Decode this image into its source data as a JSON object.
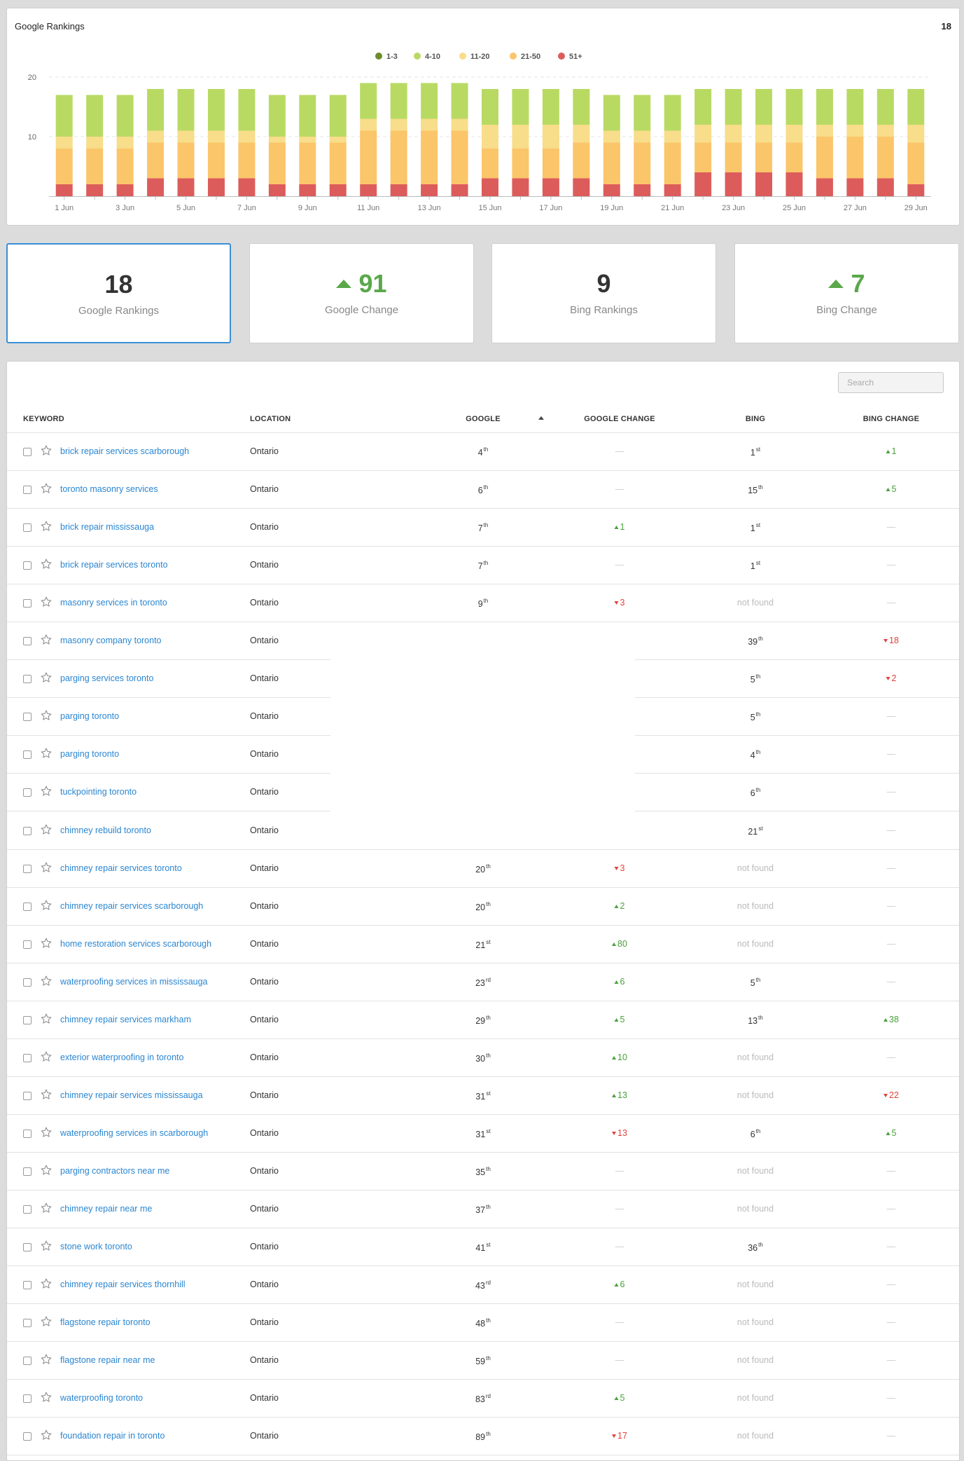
{
  "chart": {
    "title": "Google Rankings",
    "count": "18"
  },
  "chart_data": {
    "type": "bar",
    "stacked": true,
    "categories": [
      "1 Jun",
      "2 Jun",
      "3 Jun",
      "4 Jun",
      "5 Jun",
      "6 Jun",
      "7 Jun",
      "8 Jun",
      "9 Jun",
      "10 Jun",
      "11 Jun",
      "12 Jun",
      "13 Jun",
      "14 Jun",
      "15 Jun",
      "16 Jun",
      "17 Jun",
      "18 Jun",
      "19 Jun",
      "20 Jun",
      "21 Jun",
      "22 Jun",
      "23 Jun",
      "24 Jun",
      "25 Jun",
      "26 Jun",
      "27 Jun",
      "28 Jun",
      "29 Jun"
    ],
    "tick_labels": [
      "1 Jun",
      "3 Jun",
      "5 Jun",
      "7 Jun",
      "9 Jun",
      "11 Jun",
      "13 Jun",
      "15 Jun",
      "17 Jun",
      "19 Jun",
      "21 Jun",
      "23 Jun",
      "25 Jun",
      "27 Jun",
      "29 Jun"
    ],
    "y_ticks": [
      "10",
      "20"
    ],
    "ylim": [
      0,
      20
    ],
    "grid": true,
    "legend_position": "top-center",
    "series": [
      {
        "name": "51+",
        "color": "#dc5c5c",
        "values": [
          2,
          2,
          2,
          3,
          3,
          3,
          3,
          2,
          2,
          2,
          2,
          2,
          2,
          2,
          3,
          3,
          3,
          3,
          2,
          2,
          2,
          4,
          4,
          4,
          4,
          3,
          3,
          3,
          2
        ]
      },
      {
        "name": "21-50",
        "color": "#fbc56a",
        "values": [
          6,
          6,
          6,
          6,
          6,
          6,
          6,
          7,
          7,
          7,
          9,
          9,
          9,
          9,
          5,
          5,
          5,
          6,
          7,
          7,
          7,
          5,
          5,
          5,
          5,
          7,
          7,
          7,
          7
        ]
      },
      {
        "name": "11-20",
        "color": "#f8dd8a",
        "values": [
          2,
          2,
          2,
          2,
          2,
          2,
          2,
          1,
          1,
          1,
          2,
          2,
          2,
          2,
          4,
          4,
          4,
          3,
          2,
          2,
          2,
          3,
          3,
          3,
          3,
          2,
          2,
          2,
          3
        ]
      },
      {
        "name": "4-10",
        "color": "#b8da63",
        "values": [
          7,
          7,
          7,
          7,
          7,
          7,
          7,
          7,
          7,
          7,
          6,
          6,
          6,
          6,
          6,
          6,
          6,
          6,
          6,
          6,
          6,
          6,
          6,
          6,
          6,
          6,
          6,
          6,
          6
        ]
      },
      {
        "name": "1-3",
        "color": "#6b8d2a",
        "values": [
          0,
          0,
          0,
          0,
          0,
          0,
          0,
          0,
          0,
          0,
          0,
          0,
          0,
          0,
          0,
          0,
          0,
          0,
          0,
          0,
          0,
          0,
          0,
          0,
          0,
          0,
          0,
          0,
          0
        ]
      }
    ],
    "legend_order": [
      "1-3",
      "4-10",
      "11-20",
      "21-50",
      "51+"
    ]
  },
  "stats": [
    {
      "value": "18",
      "label": "Google Rankings",
      "trend": "none",
      "active": true
    },
    {
      "value": "91",
      "label": "Google Change",
      "trend": "up",
      "active": false
    },
    {
      "value": "9",
      "label": "Bing Rankings",
      "trend": "none",
      "active": false
    },
    {
      "value": "7",
      "label": "Bing Change",
      "trend": "up",
      "active": false
    }
  ],
  "table": {
    "search_placeholder": "Search",
    "headers": {
      "keyword": "KEYWORD",
      "location": "LOCATION",
      "google": "GOOGLE",
      "google_change": "GOOGLE CHANGE",
      "bing": "BING",
      "bing_change": "BING CHANGE"
    },
    "rows": [
      {
        "keyword": "brick repair services scarborough",
        "location": "Ontario",
        "google": "4",
        "gsuf": "th",
        "gchange": "—",
        "bing": "1",
        "bsuf": "st",
        "bchange": "1",
        "bdir": "up"
      },
      {
        "keyword": "toronto masonry services",
        "location": "Ontario",
        "google": "6",
        "gsuf": "th",
        "gchange": "—",
        "bing": "15",
        "bsuf": "th",
        "bchange": "5",
        "bdir": "up"
      },
      {
        "keyword": "brick repair mississauga",
        "location": "Ontario",
        "google": "7",
        "gsuf": "th",
        "gchange": "1",
        "gdir": "up",
        "bing": "1",
        "bsuf": "st",
        "bchange": "—"
      },
      {
        "keyword": "brick repair services toronto",
        "location": "Ontario",
        "google": "7",
        "gsuf": "th",
        "gchange": "—",
        "bing": "1",
        "bsuf": "st",
        "bchange": "—"
      },
      {
        "keyword": "masonry services in toronto",
        "location": "Ontario",
        "google": "9",
        "gsuf": "th",
        "gchange": "3",
        "gdir": "down",
        "bing": "not found",
        "bchange": "—"
      },
      {
        "keyword": "masonry company toronto",
        "location": "Ontario",
        "google": "",
        "gchange": "",
        "bing": "39",
        "bsuf": "th",
        "bchange": "18",
        "bdir": "down",
        "gap": true
      },
      {
        "keyword": "parging services toronto",
        "location": "Ontario",
        "google": "",
        "gchange": "",
        "bing": "5",
        "bsuf": "th",
        "bchange": "2",
        "bdir": "down",
        "gap": true
      },
      {
        "keyword": "parging toronto",
        "location": "Ontario",
        "google": "",
        "gchange": "",
        "bing": "5",
        "bsuf": "th",
        "bchange": "—",
        "gap": true
      },
      {
        "keyword": "parging toronto",
        "location": "Ontario",
        "google": "",
        "gchange": "",
        "bing": "4",
        "bsuf": "th",
        "bchange": "—",
        "gap": true
      },
      {
        "keyword": "tuckpointing toronto",
        "location": "Ontario",
        "google": "",
        "gchange": "",
        "bing": "6",
        "bsuf": "th",
        "bchange": "—",
        "gap": true
      },
      {
        "keyword": "chimney rebuild toronto",
        "location": "Ontario",
        "google": "",
        "gchange": "",
        "bing": "21",
        "bsuf": "st",
        "bchange": "—",
        "gap": false
      },
      {
        "keyword": "chimney repair services toronto",
        "location": "Ontario",
        "google": "20",
        "gsuf": "th",
        "gchange": "3",
        "gdir": "down",
        "bing": "not found",
        "bchange": "—"
      },
      {
        "keyword": "chimney repair services scarborough",
        "location": "Ontario",
        "google": "20",
        "gsuf": "th",
        "gchange": "2",
        "gdir": "up",
        "bing": "not found",
        "bchange": "—"
      },
      {
        "keyword": "home restoration services scarborough",
        "location": "Ontario",
        "google": "21",
        "gsuf": "st",
        "gchange": "80",
        "gdir": "up",
        "bing": "not found",
        "bchange": "—"
      },
      {
        "keyword": "waterproofing services in mississauga",
        "location": "Ontario",
        "google": "23",
        "gsuf": "rd",
        "gchange": "6",
        "gdir": "up",
        "bing": "5",
        "bsuf": "th",
        "bchange": "—"
      },
      {
        "keyword": "chimney repair services markham",
        "location": "Ontario",
        "google": "29",
        "gsuf": "th",
        "gchange": "5",
        "gdir": "up",
        "bing": "13",
        "bsuf": "th",
        "bchange": "38",
        "bdir": "up"
      },
      {
        "keyword": "exterior waterproofing in toronto",
        "location": "Ontario",
        "google": "30",
        "gsuf": "th",
        "gchange": "10",
        "gdir": "up",
        "bing": "not found",
        "bchange": "—"
      },
      {
        "keyword": "chimney repair services mississauga",
        "location": "Ontario",
        "google": "31",
        "gsuf": "st",
        "gchange": "13",
        "gdir": "up",
        "bing": "not found",
        "bchange": "22",
        "bdir": "down"
      },
      {
        "keyword": "waterproofing services in scarborough",
        "location": "Ontario",
        "google": "31",
        "gsuf": "st",
        "gchange": "13",
        "gdir": "down",
        "bing": "6",
        "bsuf": "th",
        "bchange": "5",
        "bdir": "up"
      },
      {
        "keyword": "parging contractors near me",
        "location": "Ontario",
        "google": "35",
        "gsuf": "th",
        "gchange": "—",
        "bing": "not found",
        "bchange": "—"
      },
      {
        "keyword": "chimney repair near me",
        "location": "Ontario",
        "google": "37",
        "gsuf": "th",
        "gchange": "—",
        "bing": "not found",
        "bchange": "—"
      },
      {
        "keyword": "stone work toronto",
        "location": "Ontario",
        "google": "41",
        "gsuf": "st",
        "gchange": "—",
        "bing": "36",
        "bsuf": "th",
        "bchange": "—"
      },
      {
        "keyword": "chimney repair services thornhill",
        "location": "Ontario",
        "google": "43",
        "gsuf": "rd",
        "gchange": "6",
        "gdir": "up",
        "bing": "not found",
        "bchange": "—"
      },
      {
        "keyword": "flagstone repair toronto",
        "location": "Ontario",
        "google": "48",
        "gsuf": "th",
        "gchange": "—",
        "bing": "not found",
        "bchange": "—"
      },
      {
        "keyword": "flagstone repair near me",
        "location": "Ontario",
        "google": "59",
        "gsuf": "th",
        "gchange": "—",
        "bing": "not found",
        "bchange": "—"
      },
      {
        "keyword": "waterproofing toronto",
        "location": "Ontario",
        "google": "83",
        "gsuf": "rd",
        "gchange": "5",
        "gdir": "up",
        "bing": "not found",
        "bchange": "—"
      },
      {
        "keyword": "foundation repair in toronto",
        "location": "Ontario",
        "google": "89",
        "gsuf": "th",
        "gchange": "17",
        "gdir": "down",
        "bing": "not found",
        "bchange": "—"
      }
    ]
  }
}
